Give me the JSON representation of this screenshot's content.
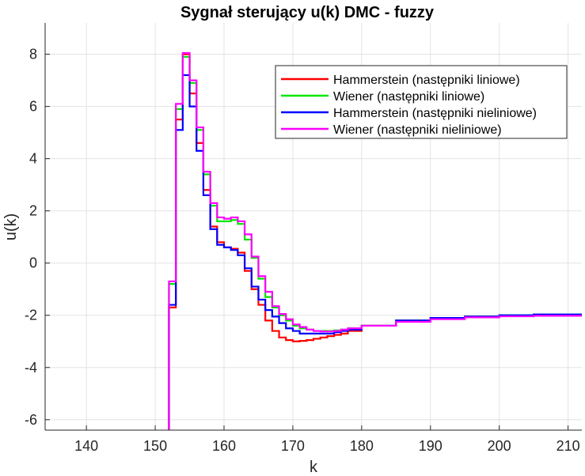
{
  "chart_data": {
    "type": "line",
    "title": "Sygnał sterujący u(k)    DMC - fuzzy",
    "xlabel": "k",
    "ylabel": "u(k)",
    "xlim": [
      134,
      212
    ],
    "ylim": [
      -6.4,
      9.2
    ],
    "xticks": [
      140,
      150,
      160,
      170,
      180,
      190,
      200,
      210
    ],
    "yticks": [
      -6,
      -4,
      -2,
      0,
      2,
      4,
      6,
      8
    ],
    "grid": true,
    "legend_position": "top-right",
    "step": true,
    "series": [
      {
        "name": "Hammerstein (następniki liniowe)",
        "color": "#ff0000",
        "x": [
          151,
          152,
          153,
          154,
          155,
          156,
          157,
          158,
          159,
          160,
          161,
          162,
          163,
          164,
          165,
          166,
          167,
          168,
          169,
          170,
          171,
          172,
          173,
          174,
          175,
          176,
          177,
          178,
          180,
          185,
          190,
          195,
          200,
          205,
          212
        ],
        "values": [
          -9,
          -1.7,
          5.5,
          8.0,
          6.5,
          4.6,
          2.8,
          1.4,
          0.8,
          0.6,
          0.55,
          0.4,
          -0.3,
          -1.0,
          -1.6,
          -2.2,
          -2.6,
          -2.85,
          -2.95,
          -3.0,
          -2.98,
          -2.95,
          -2.9,
          -2.85,
          -2.8,
          -2.75,
          -2.7,
          -2.6,
          -2.4,
          -2.2,
          -2.1,
          -2.05,
          -2.02,
          -2.0,
          -2.0
        ]
      },
      {
        "name": "Wiener (następniki liniowe)",
        "color": "#00e600",
        "x": [
          151,
          152,
          153,
          154,
          155,
          156,
          157,
          158,
          159,
          160,
          161,
          162,
          163,
          164,
          165,
          166,
          167,
          168,
          169,
          170,
          171,
          172,
          173,
          174,
          175,
          176,
          177,
          178,
          180,
          185,
          190,
          195,
          200,
          205,
          212
        ],
        "values": [
          -9,
          -0.8,
          5.9,
          7.9,
          6.9,
          5.1,
          3.4,
          2.2,
          1.6,
          1.6,
          1.65,
          1.5,
          0.9,
          0.2,
          -0.6,
          -1.3,
          -1.7,
          -2.0,
          -2.2,
          -2.4,
          -2.5,
          -2.55,
          -2.6,
          -2.6,
          -2.6,
          -2.58,
          -2.55,
          -2.5,
          -2.4,
          -2.2,
          -2.1,
          -2.05,
          -2.0,
          -1.97,
          -1.95
        ]
      },
      {
        "name": "Hammerstein (następniki nieliniowe)",
        "color": "#0000ff",
        "x": [
          151,
          152,
          153,
          154,
          155,
          156,
          157,
          158,
          159,
          160,
          161,
          162,
          163,
          164,
          165,
          166,
          167,
          168,
          169,
          170,
          171,
          172,
          173,
          174,
          175,
          176,
          177,
          178,
          180,
          185,
          190,
          195,
          200,
          205,
          212
        ],
        "values": [
          -9,
          -1.6,
          5.1,
          7.2,
          6.0,
          4.3,
          2.6,
          1.3,
          0.7,
          0.6,
          0.5,
          0.3,
          -0.2,
          -0.9,
          -1.4,
          -1.8,
          -2.05,
          -2.3,
          -2.5,
          -2.6,
          -2.7,
          -2.7,
          -2.7,
          -2.7,
          -2.7,
          -2.65,
          -2.6,
          -2.55,
          -2.4,
          -2.2,
          -2.1,
          -2.05,
          -2.0,
          -1.97,
          -1.95
        ]
      },
      {
        "name": "Wiener (następniki nieliniowe)",
        "color": "#ff00ff",
        "x": [
          151,
          152,
          153,
          154,
          155,
          156,
          157,
          158,
          159,
          160,
          161,
          162,
          163,
          164,
          165,
          166,
          167,
          168,
          169,
          170,
          171,
          172,
          173,
          174,
          175,
          176,
          177,
          178,
          180,
          185,
          190,
          195,
          200,
          205,
          212
        ],
        "values": [
          -9,
          -0.7,
          6.1,
          8.05,
          7.0,
          5.2,
          3.5,
          2.3,
          1.75,
          1.7,
          1.75,
          1.6,
          1.1,
          0.25,
          -0.5,
          -1.1,
          -1.65,
          -1.95,
          -2.15,
          -2.35,
          -2.45,
          -2.55,
          -2.6,
          -2.62,
          -2.62,
          -2.6,
          -2.55,
          -2.5,
          -2.4,
          -2.25,
          -2.15,
          -2.08,
          -2.04,
          -2.02,
          -2.0
        ]
      }
    ]
  }
}
